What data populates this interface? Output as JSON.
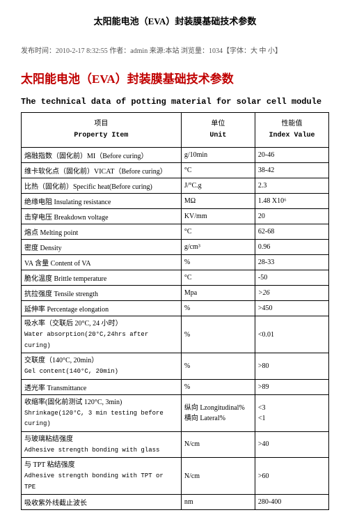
{
  "page_title": "太阳能电池（EVA）封装膜基础技术参数",
  "meta_line": "发布时间：2010-2-17 8:32:55 作者：admin 来源:本站 浏览量：1034【字体：大 中 小】",
  "red_title": "太阳能电池（EVA）封装膜基础技术参数",
  "sub_title": "The technical data of potting material for solar cell module",
  "headers": {
    "prop_cn": "项目",
    "prop_en": "Property Item",
    "unit_cn": "单位",
    "unit_en": "Unit",
    "val_cn": "性能值",
    "val_en": "Index Value"
  },
  "rows": [
    {
      "prop": "熔融指数（固化前）MI（Before curing）",
      "unit": "g/10min",
      "val": "20-46"
    },
    {
      "prop": "维卡软化点（固化前）VICAT（Before curing）",
      "unit": "°C",
      "val": "38-42"
    },
    {
      "prop": "比热（固化前）Specific heat(Before curing)",
      "unit": "J/°C.g",
      "val": "2.3"
    },
    {
      "prop": "绝缘电阻 Insulating resistance",
      "unit": "MΩ",
      "val": "1.48 X10⁶"
    },
    {
      "prop": "击穿电压 Breakdown voltage",
      "unit": "KV/mm",
      "val": "20"
    },
    {
      "prop": "熔点 Melting point",
      "unit": "°C",
      "val": "62-68"
    },
    {
      "prop": "密度 Density",
      "unit": "g/cm³",
      "val": "0.96"
    },
    {
      "prop": "VA 含量 Content of VA",
      "unit": "%",
      "val": "28-33"
    },
    {
      "prop": "脆化温度 Brittle temperature",
      "unit": "°C",
      "val": "-50"
    },
    {
      "prop": "抗拉强度 Tensile strength",
      "unit": "Mpa",
      "val": ">26",
      "italic": true
    },
    {
      "prop": "延伸率 Percentage elongation",
      "unit": "%",
      "val": ">450"
    },
    {
      "prop": "吸水率（交联后 20°C, 24 小时）\nWater absorption(20°C,24hrs after curing)",
      "unit": "%",
      "val": "<0.01",
      "twoLine": true
    },
    {
      "prop": "交联度（140°C, 20min）\nGel content(140°C, 20min)",
      "unit": "%",
      "val": ">80",
      "twoLine": true
    },
    {
      "prop": "透光率 Transmittance",
      "unit": "%",
      "val": ">89"
    },
    {
      "prop": "收缩率(固化前测试 120°C, 3min)\n Shrinkage(120°C, 3 min testing before curing)",
      "unit": "纵向 Lzongitudinal%\n横向 Lateral%",
      "unit_two": true,
      "val": "<3\n<1",
      "val_two": true,
      "twoLine": true
    },
    {
      "prop": "与玻璃粘结强度\nAdhesive strength bonding with glass",
      "unit": "N/cm",
      "val": ">40",
      "twoLine": true
    },
    {
      "prop": "与 TPT 粘结强度\nAdhesive strength bonding with TPT or TPE",
      "unit": "N/cm",
      "val": ">60",
      "twoLine": true
    },
    {
      "prop": "吸收紫外线截止波长",
      "unit": "nm",
      "val": "280-400"
    }
  ]
}
